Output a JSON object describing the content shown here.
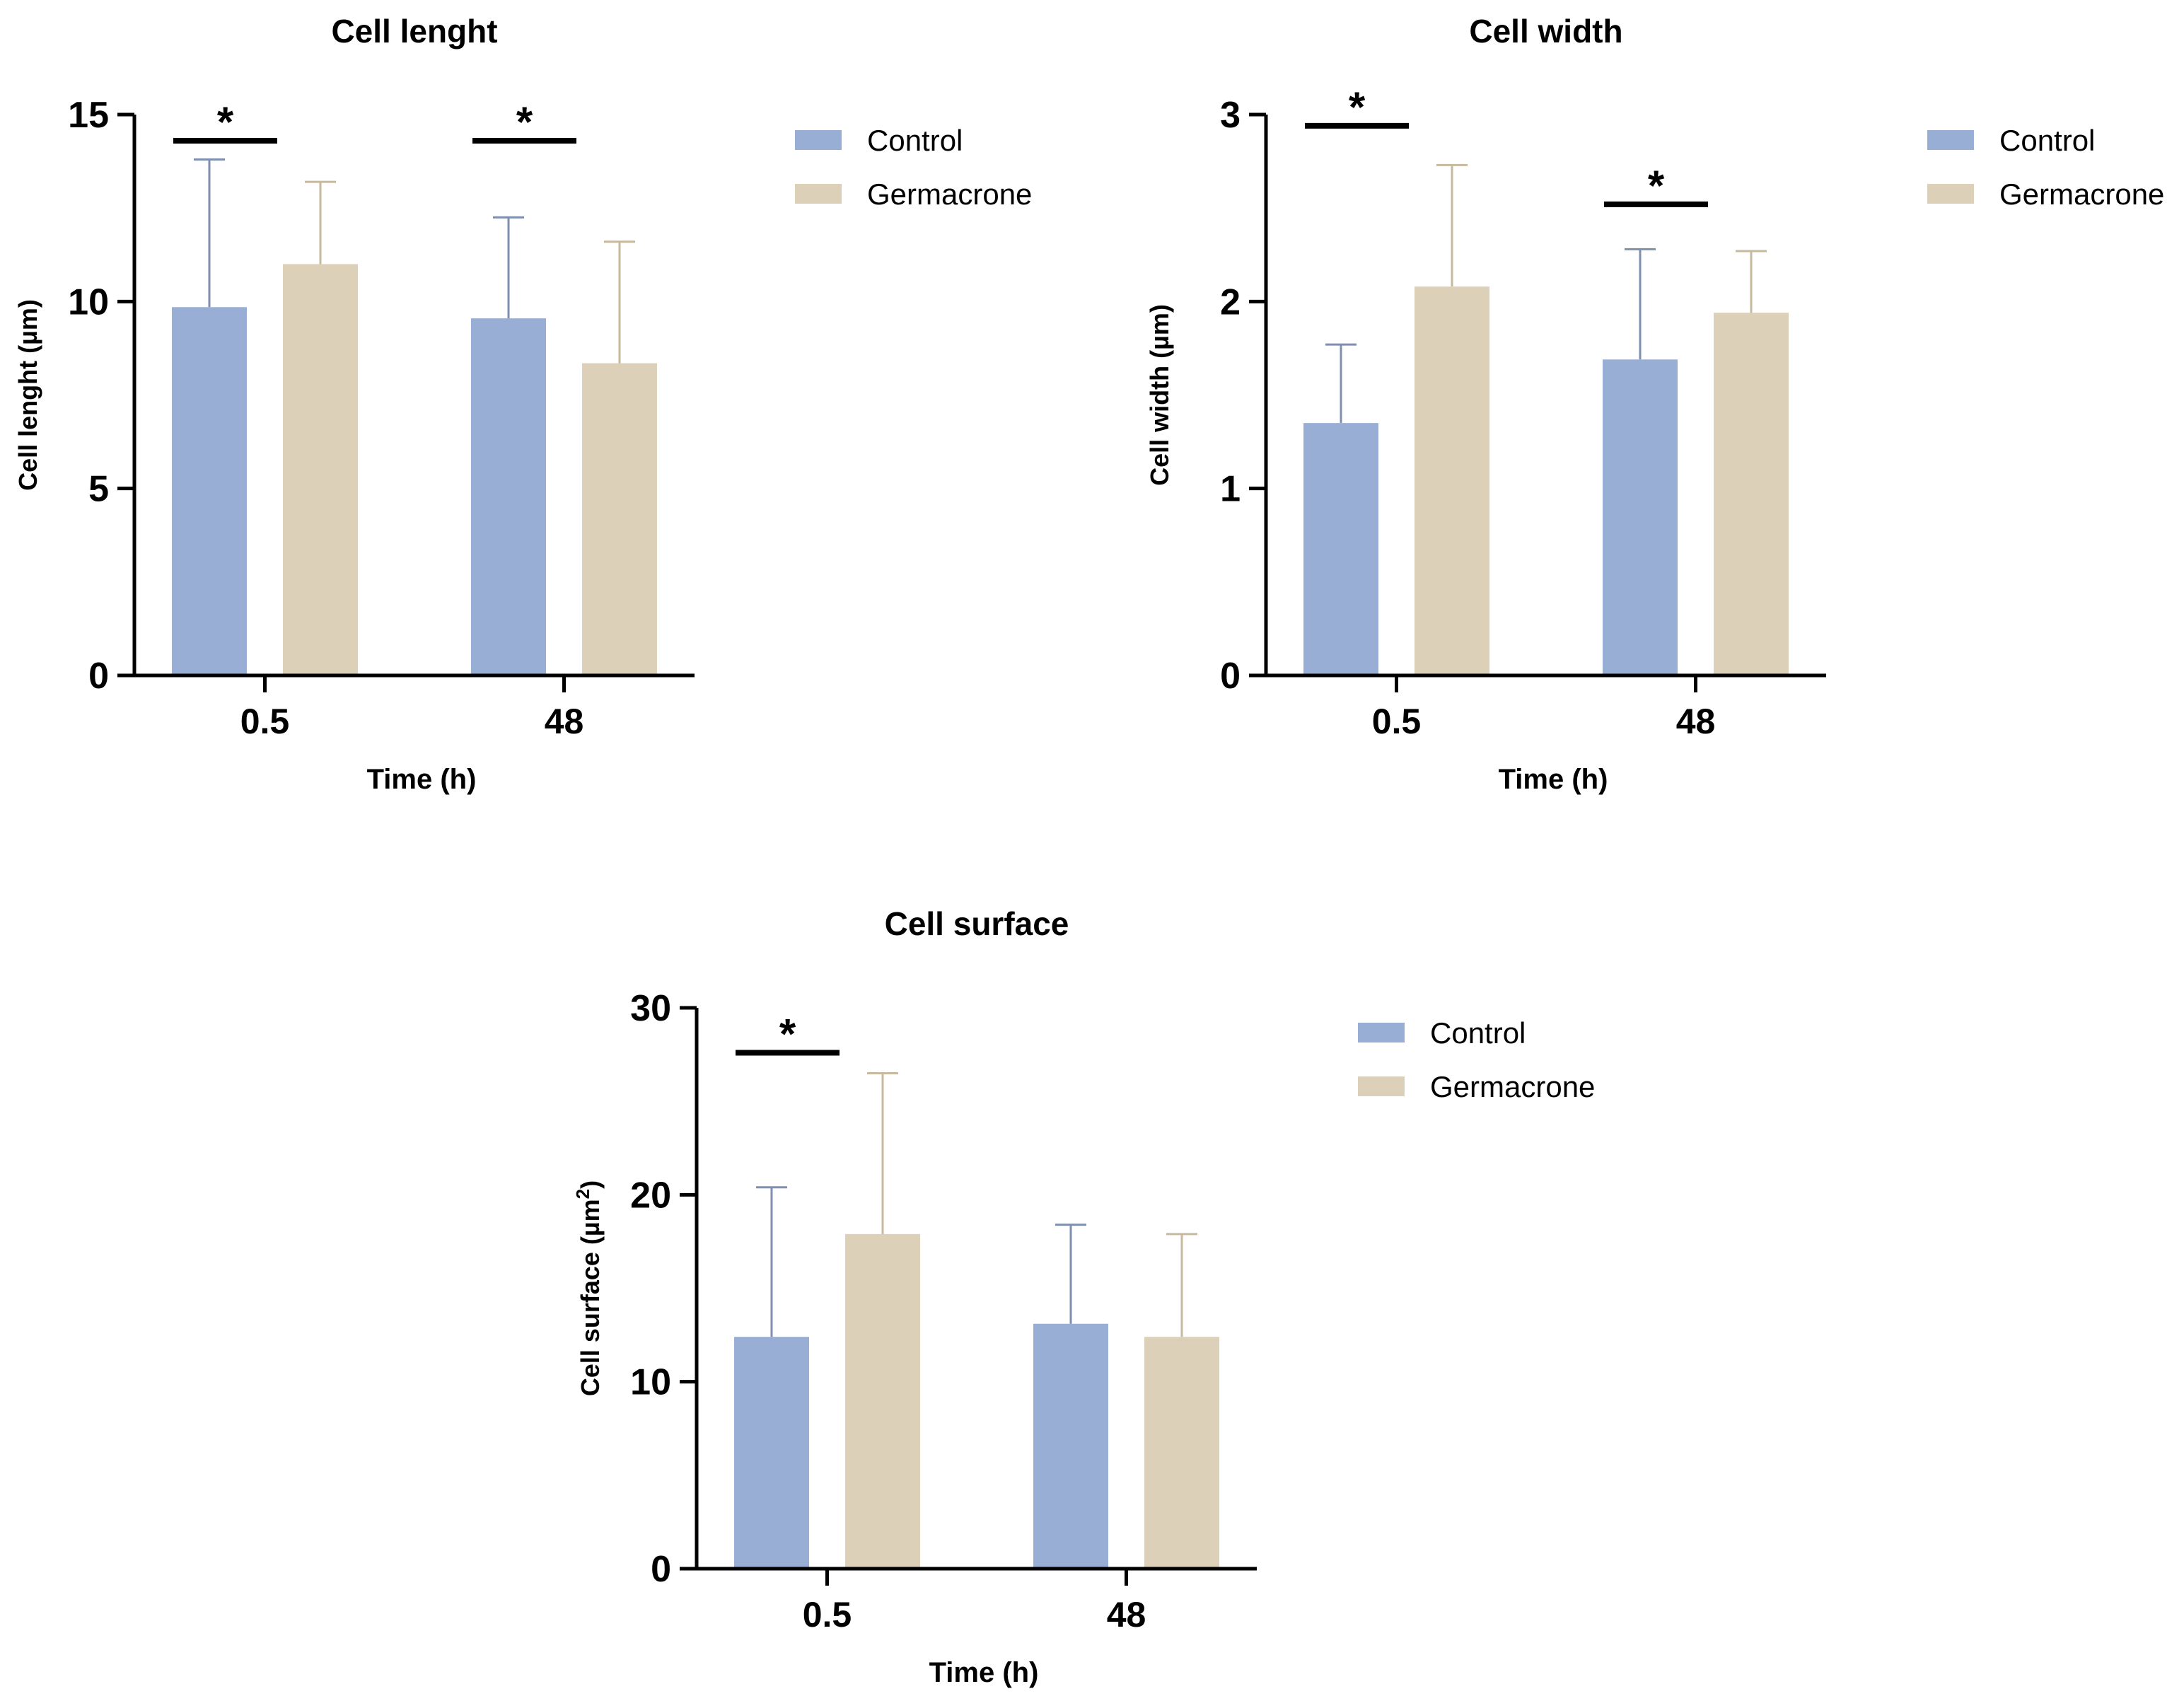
{
  "colors": {
    "Control": "#98AED4",
    "Germacrone": "#DCD0B8",
    "axis": "#000000"
  },
  "chart_data": [
    {
      "type": "bar",
      "title": "Cell lenght",
      "ylabel": "Cell lenght (µm)",
      "xlabel": "Time (h)",
      "ylim": [
        0,
        15
      ],
      "yticks": [
        0,
        5,
        10,
        15
      ],
      "categories": [
        "0.5",
        "48"
      ],
      "series": [
        {
          "name": "Control",
          "values": [
            9.85,
            9.55
          ],
          "error": [
            3.95,
            2.7
          ]
        },
        {
          "name": "Germacrone",
          "values": [
            11.0,
            8.35
          ],
          "error": [
            2.2,
            3.25
          ]
        }
      ],
      "significance": [
        {
          "category": "0.5",
          "label": "*",
          "y": 14.3
        },
        {
          "category": "48",
          "label": "*",
          "y": 14.3
        }
      ],
      "legend": [
        "Control",
        "Germacrone"
      ]
    },
    {
      "type": "bar",
      "title": "Cell width",
      "ylabel": "Cell width (µm)",
      "xlabel": "Time (h)",
      "ylim": [
        0,
        3
      ],
      "yticks": [
        0,
        1,
        2,
        3
      ],
      "categories": [
        "0.5",
        "48"
      ],
      "series": [
        {
          "name": "Control",
          "values": [
            1.35,
            1.69
          ],
          "error": [
            0.42,
            0.59
          ]
        },
        {
          "name": "Germacrone",
          "values": [
            2.08,
            1.94
          ],
          "error": [
            0.65,
            0.33
          ]
        }
      ],
      "significance": [
        {
          "category": "0.5",
          "label": "*",
          "y": 2.94
        },
        {
          "category": "48",
          "label": "*",
          "y": 2.52
        }
      ],
      "legend": [
        "Control",
        "Germacrone"
      ]
    },
    {
      "type": "bar",
      "title": "Cell surface",
      "ylabel": "Cell surface (µm",
      "ylabel_sup": "2",
      "ylabel_end": ")",
      "xlabel": "Time (h)",
      "ylim": [
        0,
        30
      ],
      "yticks": [
        0,
        10,
        20,
        30
      ],
      "categories": [
        "0.5",
        "48"
      ],
      "series": [
        {
          "name": "Control",
          "values": [
            12.4,
            13.1
          ],
          "error": [
            8.0,
            5.3
          ]
        },
        {
          "name": "Germacrone",
          "values": [
            17.9,
            12.4
          ],
          "error": [
            8.6,
            5.5
          ]
        }
      ],
      "significance": [
        {
          "category": "0.5",
          "label": "*",
          "y": 27.6
        }
      ],
      "legend": [
        "Control",
        "Germacrone"
      ]
    }
  ]
}
